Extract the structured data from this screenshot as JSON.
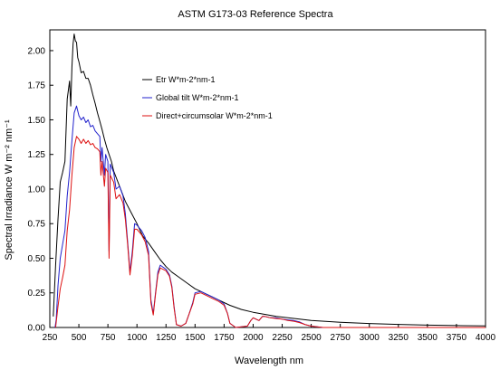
{
  "chart_data": {
    "type": "line",
    "title": "ASTM G173-03 Reference Spectra",
    "xlabel": "Wavelength nm",
    "ylabel": "Spectral Irradiance W m⁻² nm⁻¹",
    "xlim": [
      250,
      4000
    ],
    "ylim": [
      0,
      2.15
    ],
    "xticks": [
      250,
      500,
      750,
      1000,
      1250,
      1500,
      1750,
      2000,
      2250,
      2500,
      2750,
      3000,
      3250,
      3500,
      3750,
      4000
    ],
    "yticks": [
      "0.00",
      "0.25",
      "0.50",
      "0.75",
      "1.00",
      "1.25",
      "1.50",
      "1.75",
      "2.00"
    ],
    "grid": false,
    "legend_position": "top-center",
    "series": [
      {
        "name": "Etr W*m-2*nm-1",
        "color": "#000000",
        "points": [
          [
            280,
            0.08
          ],
          [
            300,
            0.45
          ],
          [
            320,
            0.78
          ],
          [
            340,
            1.05
          ],
          [
            360,
            1.12
          ],
          [
            380,
            1.2
          ],
          [
            400,
            1.65
          ],
          [
            420,
            1.78
          ],
          [
            430,
            1.6
          ],
          [
            440,
            1.88
          ],
          [
            450,
            2.05
          ],
          [
            460,
            2.12
          ],
          [
            470,
            2.07
          ],
          [
            480,
            2.06
          ],
          [
            490,
            1.95
          ],
          [
            500,
            1.92
          ],
          [
            520,
            1.84
          ],
          [
            540,
            1.85
          ],
          [
            560,
            1.8
          ],
          [
            580,
            1.8
          ],
          [
            600,
            1.75
          ],
          [
            620,
            1.68
          ],
          [
            640,
            1.62
          ],
          [
            660,
            1.55
          ],
          [
            680,
            1.49
          ],
          [
            700,
            1.43
          ],
          [
            720,
            1.36
          ],
          [
            740,
            1.3
          ],
          [
            760,
            1.25
          ],
          [
            780,
            1.2
          ],
          [
            800,
            1.13
          ],
          [
            850,
            1.02
          ],
          [
            900,
            0.91
          ],
          [
            950,
            0.83
          ],
          [
            1000,
            0.75
          ],
          [
            1050,
            0.66
          ],
          [
            1100,
            0.61
          ],
          [
            1150,
            0.55
          ],
          [
            1200,
            0.49
          ],
          [
            1250,
            0.44
          ],
          [
            1300,
            0.4
          ],
          [
            1350,
            0.37
          ],
          [
            1400,
            0.34
          ],
          [
            1450,
            0.31
          ],
          [
            1500,
            0.28
          ],
          [
            1550,
            0.26
          ],
          [
            1600,
            0.24
          ],
          [
            1650,
            0.22
          ],
          [
            1700,
            0.2
          ],
          [
            1800,
            0.16
          ],
          [
            1900,
            0.13
          ],
          [
            2000,
            0.11
          ],
          [
            2100,
            0.095
          ],
          [
            2200,
            0.08
          ],
          [
            2300,
            0.07
          ],
          [
            2400,
            0.06
          ],
          [
            2500,
            0.05
          ],
          [
            2750,
            0.037
          ],
          [
            3000,
            0.029
          ],
          [
            3250,
            0.022
          ],
          [
            3500,
            0.017
          ],
          [
            3750,
            0.014
          ],
          [
            4000,
            0.011
          ]
        ]
      },
      {
        "name": "Global tilt  W*m-2*nm-1",
        "color": "#2222cc",
        "points": [
          [
            295,
            0.0
          ],
          [
            305,
            0.06
          ],
          [
            320,
            0.3
          ],
          [
            340,
            0.5
          ],
          [
            360,
            0.6
          ],
          [
            380,
            0.7
          ],
          [
            400,
            0.95
          ],
          [
            420,
            1.12
          ],
          [
            440,
            1.35
          ],
          [
            460,
            1.55
          ],
          [
            480,
            1.6
          ],
          [
            500,
            1.53
          ],
          [
            520,
            1.5
          ],
          [
            540,
            1.52
          ],
          [
            560,
            1.48
          ],
          [
            580,
            1.5
          ],
          [
            600,
            1.45
          ],
          [
            620,
            1.46
          ],
          [
            640,
            1.42
          ],
          [
            660,
            1.4
          ],
          [
            680,
            1.38
          ],
          [
            690,
            1.2
          ],
          [
            700,
            1.3
          ],
          [
            720,
            1.1
          ],
          [
            730,
            1.25
          ],
          [
            750,
            1.2
          ],
          [
            760,
            0.55
          ],
          [
            770,
            1.18
          ],
          [
            800,
            1.12
          ],
          [
            820,
            1.0
          ],
          [
            850,
            1.02
          ],
          [
            880,
            0.95
          ],
          [
            900,
            0.82
          ],
          [
            920,
            0.62
          ],
          [
            940,
            0.4
          ],
          [
            960,
            0.55
          ],
          [
            980,
            0.75
          ],
          [
            1000,
            0.74
          ],
          [
            1040,
            0.7
          ],
          [
            1070,
            0.65
          ],
          [
            1100,
            0.55
          ],
          [
            1120,
            0.2
          ],
          [
            1140,
            0.1
          ],
          [
            1160,
            0.25
          ],
          [
            1180,
            0.4
          ],
          [
            1200,
            0.45
          ],
          [
            1250,
            0.42
          ],
          [
            1280,
            0.38
          ],
          [
            1300,
            0.3
          ],
          [
            1320,
            0.15
          ],
          [
            1340,
            0.02
          ],
          [
            1380,
            0.01
          ],
          [
            1420,
            0.03
          ],
          [
            1450,
            0.1
          ],
          [
            1480,
            0.18
          ],
          [
            1500,
            0.25
          ],
          [
            1550,
            0.26
          ],
          [
            1600,
            0.24
          ],
          [
            1650,
            0.22
          ],
          [
            1700,
            0.2
          ],
          [
            1750,
            0.17
          ],
          [
            1780,
            0.1
          ],
          [
            1800,
            0.03
          ],
          [
            1850,
            0.0
          ],
          [
            1950,
            0.01
          ],
          [
            1980,
            0.05
          ],
          [
            2000,
            0.07
          ],
          [
            2050,
            0.05
          ],
          [
            2080,
            0.08
          ],
          [
            2100,
            0.08
          ],
          [
            2150,
            0.07
          ],
          [
            2200,
            0.07
          ],
          [
            2250,
            0.06
          ],
          [
            2300,
            0.055
          ],
          [
            2350,
            0.05
          ],
          [
            2400,
            0.04
          ],
          [
            2450,
            0.02
          ],
          [
            2500,
            0.01
          ],
          [
            2600,
            0.0
          ],
          [
            4000,
            0.0
          ]
        ]
      },
      {
        "name": "Direct+circumsolar W*m-2*nm-1",
        "color": "#dd1111",
        "points": [
          [
            300,
            0.0
          ],
          [
            320,
            0.15
          ],
          [
            340,
            0.28
          ],
          [
            360,
            0.36
          ],
          [
            380,
            0.45
          ],
          [
            400,
            0.7
          ],
          [
            420,
            0.85
          ],
          [
            440,
            1.1
          ],
          [
            460,
            1.3
          ],
          [
            480,
            1.38
          ],
          [
            500,
            1.36
          ],
          [
            520,
            1.33
          ],
          [
            540,
            1.36
          ],
          [
            560,
            1.33
          ],
          [
            580,
            1.35
          ],
          [
            600,
            1.32
          ],
          [
            620,
            1.33
          ],
          [
            640,
            1.3
          ],
          [
            660,
            1.29
          ],
          [
            680,
            1.27
          ],
          [
            690,
            1.1
          ],
          [
            700,
            1.2
          ],
          [
            720,
            1.02
          ],
          [
            730,
            1.15
          ],
          [
            750,
            1.12
          ],
          [
            760,
            0.5
          ],
          [
            770,
            1.1
          ],
          [
            800,
            1.05
          ],
          [
            820,
            0.93
          ],
          [
            850,
            0.96
          ],
          [
            880,
            0.9
          ],
          [
            900,
            0.78
          ],
          [
            920,
            0.6
          ],
          [
            940,
            0.38
          ],
          [
            960,
            0.52
          ],
          [
            980,
            0.71
          ],
          [
            1000,
            0.71
          ],
          [
            1040,
            0.67
          ],
          [
            1070,
            0.62
          ],
          [
            1100,
            0.52
          ],
          [
            1120,
            0.18
          ],
          [
            1140,
            0.09
          ],
          [
            1160,
            0.24
          ],
          [
            1180,
            0.38
          ],
          [
            1200,
            0.43
          ],
          [
            1250,
            0.41
          ],
          [
            1280,
            0.37
          ],
          [
            1300,
            0.29
          ],
          [
            1320,
            0.14
          ],
          [
            1340,
            0.02
          ],
          [
            1380,
            0.01
          ],
          [
            1420,
            0.03
          ],
          [
            1450,
            0.1
          ],
          [
            1480,
            0.17
          ],
          [
            1500,
            0.24
          ],
          [
            1550,
            0.25
          ],
          [
            1600,
            0.23
          ],
          [
            1650,
            0.21
          ],
          [
            1700,
            0.19
          ],
          [
            1750,
            0.16
          ],
          [
            1780,
            0.1
          ],
          [
            1800,
            0.03
          ],
          [
            1850,
            0.0
          ],
          [
            1950,
            0.01
          ],
          [
            1980,
            0.05
          ],
          [
            2000,
            0.07
          ],
          [
            2050,
            0.05
          ],
          [
            2080,
            0.08
          ],
          [
            2100,
            0.08
          ],
          [
            2150,
            0.07
          ],
          [
            2200,
            0.065
          ],
          [
            2250,
            0.06
          ],
          [
            2300,
            0.05
          ],
          [
            2350,
            0.045
          ],
          [
            2400,
            0.035
          ],
          [
            2450,
            0.02
          ],
          [
            2500,
            0.01
          ],
          [
            2600,
            0.0
          ],
          [
            4000,
            0.0
          ]
        ]
      }
    ]
  }
}
